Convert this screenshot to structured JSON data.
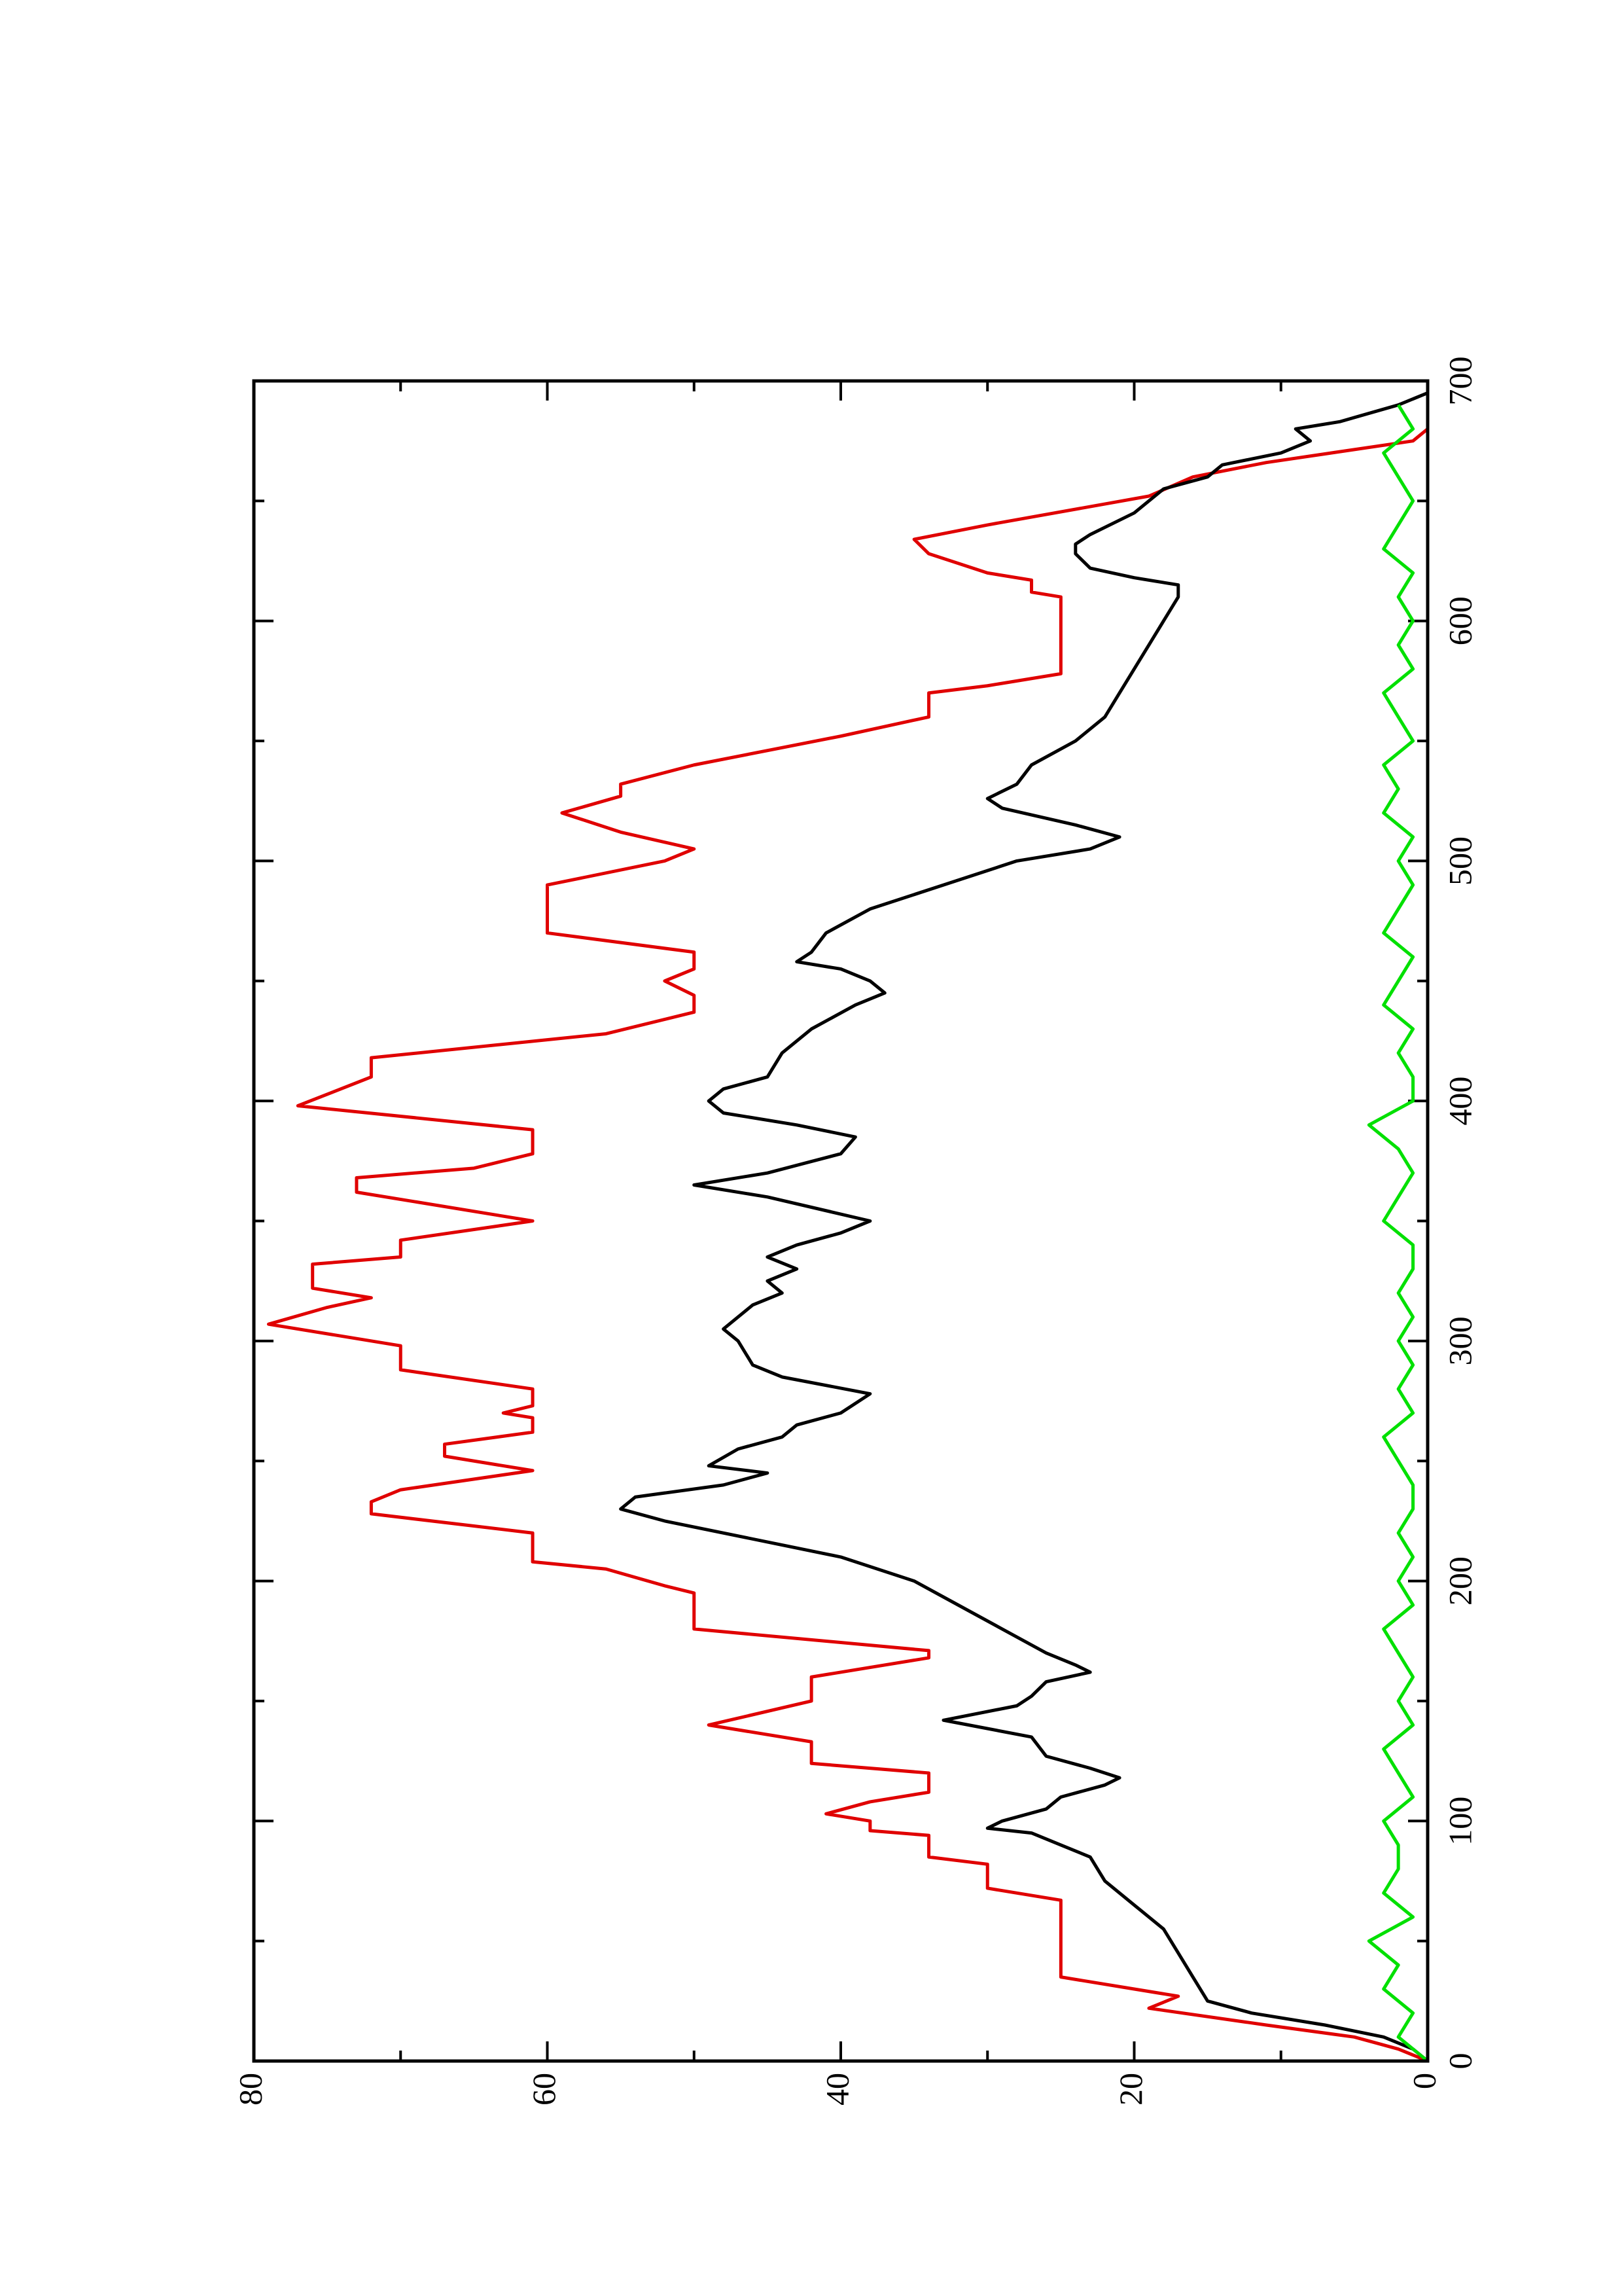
{
  "chart_data": {
    "type": "line",
    "xlim": [
      0,
      700
    ],
    "xticks": [
      0,
      100,
      200,
      300,
      400,
      500,
      600,
      700
    ],
    "xminorticks": [
      50,
      150,
      250,
      350,
      450,
      550,
      650
    ],
    "ylim": [
      0,
      80
    ],
    "yticks": [
      0,
      20,
      40,
      60,
      80
    ],
    "yminorticks": [
      10,
      30,
      50,
      70
    ],
    "rotated": true,
    "series": [
      {
        "color": "#e00000",
        "x": [
          0,
          5,
          10,
          15,
          22,
          27,
          30,
          35,
          67,
          72,
          82,
          85,
          94,
          96,
          100,
          103,
          108,
          112,
          120,
          124,
          133,
          140,
          150,
          160,
          168,
          171,
          180,
          195,
          198,
          205,
          208,
          220,
          228,
          233,
          238,
          246,
          252,
          257,
          262,
          268,
          270,
          273,
          280,
          288,
          298,
          307,
          314,
          318,
          322,
          332,
          335,
          342,
          350,
          362,
          368,
          372,
          378,
          388,
          398,
          410,
          418,
          428,
          437,
          444,
          450,
          455,
          462,
          470,
          490,
          500,
          505,
          512,
          520,
          527,
          532,
          540,
          552,
          560,
          570,
          573,
          578,
          610,
          612,
          617,
          620,
          628,
          634,
          640,
          652,
          660,
          666,
          675,
          680
        ],
        "values": [
          0,
          2,
          5,
          11,
          19,
          17,
          20,
          25,
          25,
          30,
          30,
          34,
          34,
          38,
          38,
          41,
          38,
          34,
          34,
          42,
          42,
          49,
          42,
          42,
          34,
          34,
          50,
          50,
          52,
          56,
          61,
          61,
          72,
          72,
          70,
          61,
          67,
          67,
          61,
          61,
          63,
          61,
          61,
          70,
          70,
          79,
          75,
          72,
          76,
          76,
          70,
          70,
          61,
          73,
          73,
          65,
          61,
          61,
          77,
          72,
          72,
          56,
          50,
          50,
          52,
          50,
          50,
          60,
          60,
          52,
          50,
          55,
          59,
          55,
          55,
          50,
          40,
          34,
          34,
          30,
          25,
          25,
          27,
          27,
          30,
          34,
          35,
          30,
          19,
          16,
          11,
          1,
          0
        ]
      },
      {
        "color": "#000000",
        "x": [
          0,
          5,
          10,
          15,
          20,
          25,
          35,
          45,
          55,
          65,
          75,
          85,
          90,
          95,
          97,
          100,
          105,
          110,
          115,
          118,
          122,
          127,
          135,
          142,
          148,
          152,
          158,
          162,
          165,
          170,
          180,
          190,
          200,
          210,
          215,
          225,
          230,
          235,
          240,
          245,
          248,
          255,
          260,
          265,
          270,
          278,
          285,
          290,
          300,
          305,
          310,
          315,
          320,
          325,
          330,
          335,
          340,
          345,
          350,
          360,
          365,
          370,
          378,
          385,
          390,
          395,
          400,
          405,
          410,
          420,
          430,
          440,
          445,
          450,
          455,
          458,
          462,
          470,
          480,
          490,
          500,
          505,
          510,
          515,
          522,
          526,
          532,
          540,
          550,
          560,
          570,
          580,
          590,
          600,
          610,
          615,
          618,
          622,
          628,
          632,
          636,
          645,
          655,
          660,
          665,
          670,
          675,
          680,
          683,
          690,
          695
        ],
        "values": [
          0,
          1,
          3,
          7,
          12,
          15,
          16,
          17,
          18,
          20,
          22,
          23,
          25,
          27,
          30,
          29,
          26,
          25,
          22,
          21,
          23,
          26,
          27,
          33,
          28,
          27,
          26,
          23,
          24,
          26,
          29,
          32,
          35,
          40,
          44,
          52,
          55,
          54,
          48,
          45,
          49,
          47,
          44,
          43,
          40,
          38,
          44,
          46,
          47,
          48,
          47,
          46,
          44,
          45,
          43,
          45,
          43,
          40,
          38,
          45,
          50,
          45,
          40,
          39,
          43,
          48,
          49,
          48,
          45,
          44,
          42,
          39,
          37,
          38,
          40,
          43,
          42,
          41,
          38,
          33,
          28,
          23,
          21,
          24,
          29,
          30,
          28,
          27,
          24,
          22,
          21,
          20,
          19,
          18,
          17,
          17,
          20,
          23,
          24,
          24,
          23,
          20,
          18,
          15,
          14,
          10,
          8,
          9,
          6,
          2,
          0
        ]
      },
      {
        "color": "#00e000",
        "x": [
          0,
          10,
          20,
          30,
          40,
          50,
          60,
          70,
          80,
          90,
          100,
          110,
          120,
          130,
          140,
          150,
          160,
          170,
          180,
          190,
          200,
          210,
          220,
          230,
          240,
          250,
          260,
          270,
          280,
          290,
          300,
          310,
          320,
          330,
          340,
          350,
          360,
          370,
          380,
          390,
          400,
          410,
          420,
          430,
          440,
          450,
          460,
          470,
          480,
          490,
          500,
          510,
          520,
          530,
          540,
          550,
          560,
          570,
          580,
          590,
          600,
          610,
          620,
          630,
          640,
          650,
          660,
          670,
          680,
          690
        ],
        "values": [
          0,
          2,
          1,
          3,
          2,
          4,
          1,
          3,
          2,
          2,
          3,
          1,
          2,
          3,
          1,
          2,
          1,
          2,
          3,
          1,
          2,
          1,
          2,
          1,
          1,
          2,
          3,
          1,
          2,
          1,
          2,
          1,
          2,
          1,
          1,
          3,
          2,
          1,
          2,
          4,
          1,
          1,
          2,
          1,
          3,
          2,
          1,
          3,
          2,
          1,
          2,
          1,
          3,
          2,
          3,
          1,
          2,
          3,
          1,
          2,
          1,
          2,
          1,
          3,
          2,
          1,
          2,
          3,
          1,
          2
        ]
      }
    ]
  }
}
